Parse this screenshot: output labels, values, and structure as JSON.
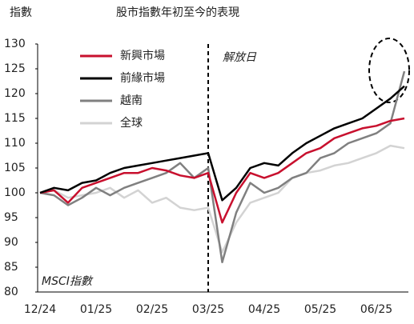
{
  "chart_data": {
    "type": "line",
    "title": "股市指數年初至今的表現",
    "y_label": "指數",
    "source_note": "MSCI指數",
    "annotation": "解放日",
    "categories": [
      "12/24",
      null,
      null,
      null,
      "01/25",
      null,
      null,
      null,
      "02/25",
      null,
      null,
      null,
      "03/25",
      null,
      null,
      null,
      "04/25",
      null,
      null,
      null,
      "05/25",
      null,
      null,
      null,
      "06/25",
      null,
      null
    ],
    "series": [
      {
        "name": "新興市場",
        "color": "#c8102e",
        "values": [
          100,
          100.5,
          98,
          101,
          102,
          103,
          104,
          104,
          105,
          104.5,
          103.5,
          103,
          104,
          94,
          100,
          104,
          103,
          104,
          106,
          108,
          109,
          111,
          112,
          113,
          113.5,
          114.5,
          115
        ]
      },
      {
        "name": "前緣市場",
        "color": "#000000",
        "values": [
          100,
          101,
          100.5,
          102,
          102.5,
          104,
          105,
          105.5,
          106,
          106.5,
          107,
          107.5,
          108,
          98.5,
          101,
          105,
          106,
          105.5,
          108,
          110,
          111.5,
          113,
          114,
          115,
          117,
          119,
          121.5
        ]
      },
      {
        "name": "越南",
        "color": "#808080",
        "values": [
          100,
          99.5,
          97.5,
          99,
          101,
          99.5,
          101,
          102,
          103,
          104,
          106,
          103,
          105,
          86,
          96,
          102,
          100,
          101,
          103,
          104,
          107,
          108,
          110,
          111,
          112,
          114,
          124.5
        ]
      },
      {
        "name": "全球",
        "color": "#d3d3d3",
        "values": [
          100,
          100.5,
          99,
          99.5,
          100,
          101,
          99,
          100.5,
          98,
          99,
          97,
          96.5,
          97,
          88,
          94,
          98,
          99,
          100,
          103,
          104,
          104.5,
          105.5,
          106,
          107,
          108,
          109.5,
          109
        ]
      }
    ],
    "ylim": [
      80,
      130
    ],
    "yticks": [
      80,
      85,
      90,
      95,
      100,
      105,
      110,
      115,
      120,
      125,
      130
    ]
  }
}
